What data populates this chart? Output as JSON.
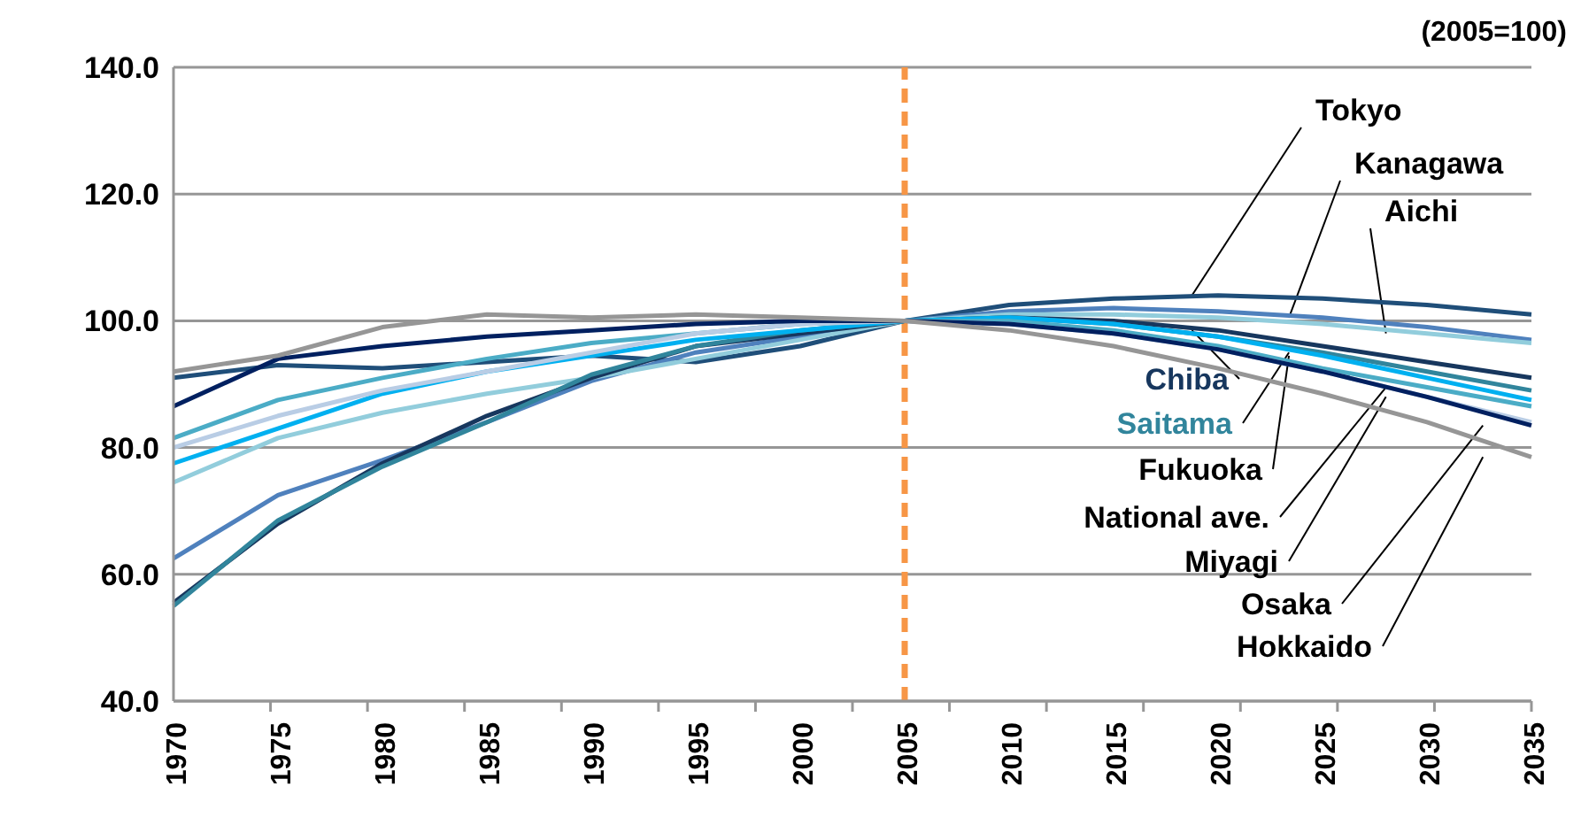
{
  "chart_data": {
    "type": "line",
    "categories": [
      "1970",
      "1975",
      "1980",
      "1985",
      "1990",
      "1995",
      "2000",
      "2005",
      "2010",
      "2015",
      "2020",
      "2025",
      "2030",
      "2035"
    ],
    "series": [
      {
        "name": "Tokyo",
        "color": "#1f4e79",
        "values": [
          91,
          93,
          92.5,
          93.5,
          94.5,
          93.5,
          96,
          100,
          102.5,
          103.5,
          104,
          103.5,
          102.5,
          101
        ]
      },
      {
        "name": "Kanagawa",
        "color": "#4f81bd",
        "values": [
          62.5,
          72.5,
          78,
          84,
          90.5,
          95,
          97.5,
          100,
          101.5,
          102,
          101.5,
          100.5,
          99,
          97
        ]
      },
      {
        "name": "Aichi",
        "color": "#92cddc",
        "values": [
          74.5,
          81.5,
          85.5,
          88.5,
          91,
          94,
          97,
          100,
          101,
          101,
          100.5,
          99.5,
          98,
          96.5
        ]
      },
      {
        "name": "Chiba",
        "color": "#17375e",
        "values": [
          55.5,
          68,
          77.5,
          85,
          91,
          96,
          98,
          100,
          100.5,
          100,
          98.5,
          96,
          93.5,
          91
        ]
      },
      {
        "name": "Saitama",
        "color": "#31859c",
        "values": [
          55,
          68.5,
          77,
          84,
          91.5,
          96,
          98.5,
          100,
          100.5,
          99.5,
          97.5,
          95,
          92,
          89
        ]
      },
      {
        "name": "Fukuoka",
        "color": "#00b0f0",
        "values": [
          77.5,
          83,
          88.5,
          92,
          94.5,
          97,
          98.5,
          100,
          100.5,
          99.5,
          97.5,
          94.5,
          91,
          87.5
        ]
      },
      {
        "name": "National ave.",
        "color": "#4bacc6",
        "values": [
          81.5,
          87.5,
          91,
          94,
          96.5,
          98,
          99.5,
          100,
          100,
          98.5,
          96,
          92.5,
          89.5,
          86.5
        ]
      },
      {
        "name": "Miyagi",
        "color": "#b9cde5",
        "values": [
          80,
          85,
          89,
          92,
          95,
          98,
          99.5,
          100,
          99.5,
          98,
          95.5,
          92,
          88,
          84
        ]
      },
      {
        "name": "Osaka",
        "color": "#002060",
        "values": [
          86.5,
          94,
          96,
          97.5,
          98.5,
          99.5,
          100,
          100,
          99.5,
          98,
          95.5,
          92,
          88,
          83.5
        ]
      },
      {
        "name": "Hokkaido",
        "color": "#969696",
        "values": [
          92,
          94.5,
          99,
          101,
          100.5,
          101,
          100.5,
          100,
          98.5,
          96,
          92.5,
          88.5,
          84,
          78.5
        ]
      }
    ],
    "ylim": [
      40,
      140
    ],
    "yticks": [
      {
        "value": 40,
        "label": "40.0"
      },
      {
        "value": 60,
        "label": "60.0"
      },
      {
        "value": 80,
        "label": "80.0"
      },
      {
        "value": 100,
        "label": "100.0"
      },
      {
        "value": 120,
        "label": "120.0"
      },
      {
        "value": 140,
        "label": "140.0"
      }
    ],
    "grid": "y",
    "legend": false,
    "marker": "none",
    "line_style": "solid",
    "ref_lines": [
      {
        "axis": "x",
        "value": "2005",
        "color": "#f79646",
        "line_style": "dashed"
      }
    ],
    "annotations": [
      "(2005=100)"
    ]
  }
}
